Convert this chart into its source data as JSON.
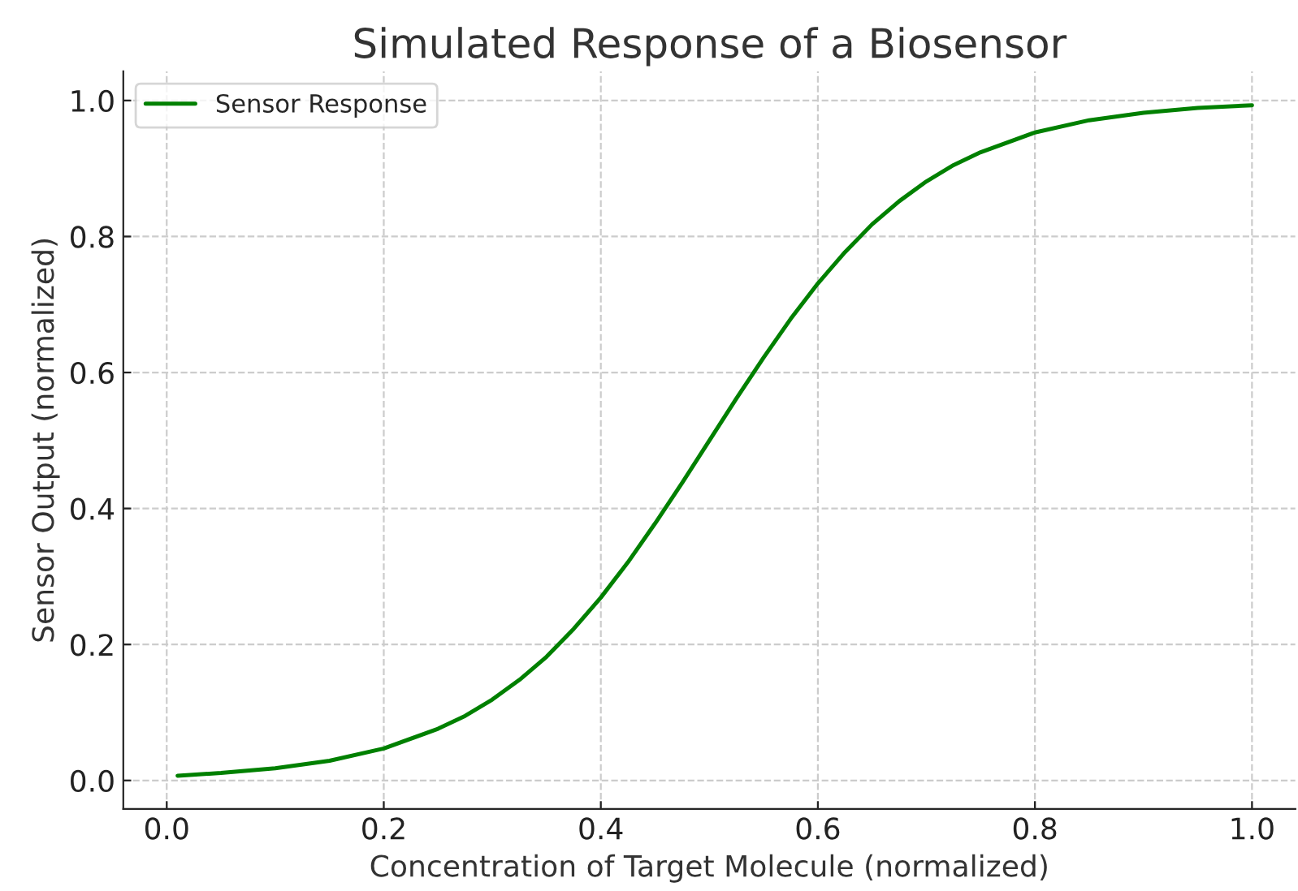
{
  "chart_data": {
    "type": "line",
    "title": "Simulated Response of a Biosensor",
    "xlabel": "Concentration of Target Molecule (normalized)",
    "ylabel": "Sensor Output (normalized)",
    "series": [
      {
        "name": "Sensor Response",
        "color": "#008000",
        "x": [
          0.01,
          0.05,
          0.1,
          0.15,
          0.2,
          0.25,
          0.275,
          0.3,
          0.325,
          0.35,
          0.375,
          0.4,
          0.425,
          0.45,
          0.475,
          0.5,
          0.525,
          0.55,
          0.575,
          0.6,
          0.625,
          0.65,
          0.675,
          0.7,
          0.725,
          0.75,
          0.8,
          0.85,
          0.9,
          0.95,
          1.0
        ],
        "values": [
          0.007,
          0.011,
          0.018,
          0.029,
          0.047,
          0.076,
          0.095,
          0.119,
          0.148,
          0.182,
          0.223,
          0.269,
          0.321,
          0.378,
          0.438,
          0.5,
          0.562,
          0.622,
          0.679,
          0.731,
          0.777,
          0.818,
          0.852,
          0.881,
          0.905,
          0.924,
          0.953,
          0.971,
          0.982,
          0.989,
          0.993
        ]
      }
    ],
    "xlim": [
      -0.04,
      1.04
    ],
    "ylim": [
      -0.042,
      1.043
    ],
    "xticks": [
      {
        "value": 0,
        "label": "0.0"
      },
      0.2,
      0.4,
      0.6,
      0.8,
      {
        "value": 1,
        "label": "1.0"
      }
    ],
    "yticks": [
      {
        "value": 0,
        "label": "0.0"
      },
      0.2,
      0.4,
      0.6,
      0.8,
      {
        "value": 1,
        "label": "1.0"
      }
    ],
    "grid": true,
    "legend": "top left",
    "line_style": "solid",
    "marker": "none"
  }
}
